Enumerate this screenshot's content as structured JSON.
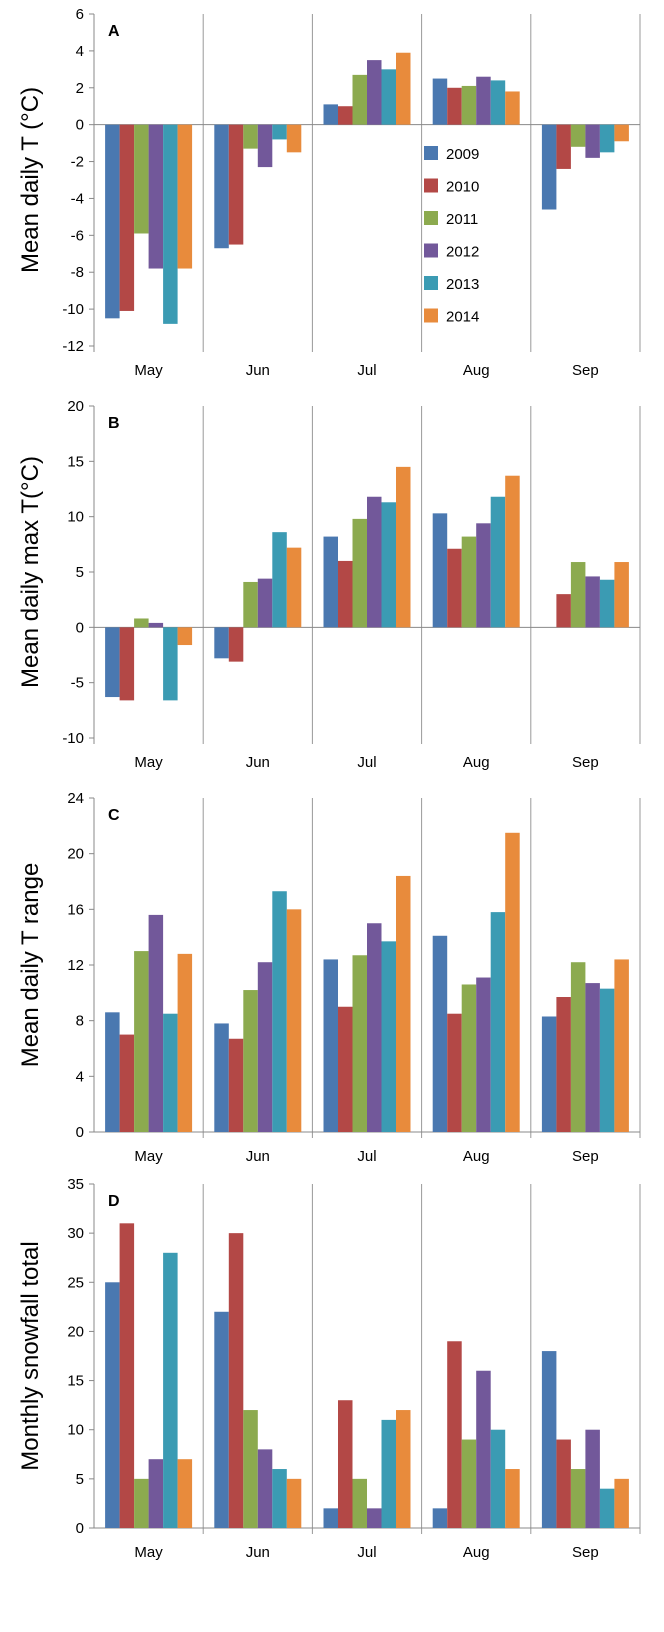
{
  "colors": {
    "2009": "#4a78b0",
    "2010": "#b34846",
    "2011": "#8caa4f",
    "2012": "#72589a",
    "2013": "#3b9bb3",
    "2014": "#e88b3c"
  },
  "legend": [
    "2009",
    "2010",
    "2011",
    "2012",
    "2013",
    "2014"
  ],
  "chart_data": [
    {
      "type": "bar",
      "panel": "A",
      "ylabel": "Mean daily T (°C)",
      "categories": [
        "May",
        "Jun",
        "Jul",
        "Aug",
        "Sep"
      ],
      "ylim": [
        -12,
        6
      ],
      "yticks": [
        -12,
        -10,
        -8,
        -6,
        -4,
        -2,
        0,
        2,
        4,
        6
      ],
      "series": [
        {
          "name": "2009",
          "values": [
            -10.5,
            -6.7,
            1.1,
            2.5,
            -4.6
          ]
        },
        {
          "name": "2010",
          "values": [
            -10.1,
            -6.5,
            1.0,
            2.0,
            -2.4
          ]
        },
        {
          "name": "2011",
          "values": [
            -5.9,
            -1.3,
            2.7,
            2.1,
            -1.2
          ]
        },
        {
          "name": "2012",
          "values": [
            -7.8,
            -2.3,
            3.5,
            2.6,
            -1.8
          ]
        },
        {
          "name": "2013",
          "values": [
            -10.8,
            -0.8,
            3.0,
            2.4,
            -1.5
          ]
        },
        {
          "name": "2014",
          "values": [
            -7.8,
            -1.5,
            3.9,
            1.8,
            -0.9
          ]
        }
      ],
      "legend_position": "inside-center"
    },
    {
      "type": "bar",
      "panel": "B",
      "ylabel": "Mean daily max T(°C)",
      "categories": [
        "May",
        "Jun",
        "Jul",
        "Aug",
        "Sep"
      ],
      "ylim": [
        -10,
        20
      ],
      "yticks": [
        -10,
        -5,
        0,
        5,
        10,
        15,
        20
      ],
      "series": [
        {
          "name": "2009",
          "values": [
            -6.3,
            -2.8,
            8.2,
            10.3,
            0
          ]
        },
        {
          "name": "2010",
          "values": [
            -6.6,
            -3.1,
            6.0,
            7.1,
            3.0
          ]
        },
        {
          "name": "2011",
          "values": [
            0.8,
            4.1,
            9.8,
            8.2,
            5.9
          ]
        },
        {
          "name": "2012",
          "values": [
            0.4,
            4.4,
            11.8,
            9.4,
            4.6
          ]
        },
        {
          "name": "2013",
          "values": [
            -6.6,
            8.6,
            11.3,
            11.8,
            4.3
          ]
        },
        {
          "name": "2014",
          "values": [
            -1.6,
            7.2,
            14.5,
            13.7,
            5.9
          ]
        }
      ]
    },
    {
      "type": "bar",
      "panel": "C",
      "ylabel": "Mean daily T range",
      "categories": [
        "May",
        "Jun",
        "Jul",
        "Aug",
        "Sep"
      ],
      "ylim": [
        0,
        24
      ],
      "yticks": [
        0,
        4,
        8,
        12,
        16,
        20,
        24
      ],
      "series": [
        {
          "name": "2009",
          "values": [
            8.6,
            7.8,
            12.4,
            14.1,
            8.3
          ]
        },
        {
          "name": "2010",
          "values": [
            7.0,
            6.7,
            9.0,
            8.5,
            9.7
          ]
        },
        {
          "name": "2011",
          "values": [
            13.0,
            10.2,
            12.7,
            10.6,
            12.2
          ]
        },
        {
          "name": "2012",
          "values": [
            15.6,
            12.2,
            15.0,
            11.1,
            10.7
          ]
        },
        {
          "name": "2013",
          "values": [
            8.5,
            17.3,
            13.7,
            15.8,
            10.3
          ]
        },
        {
          "name": "2014",
          "values": [
            12.8,
            16.0,
            18.4,
            21.5,
            12.4
          ]
        }
      ]
    },
    {
      "type": "bar",
      "panel": "D",
      "ylabel": "Monthly snowfall total",
      "categories": [
        "May",
        "Jun",
        "Jul",
        "Aug",
        "Sep"
      ],
      "ylim": [
        0,
        35
      ],
      "yticks": [
        0,
        5,
        10,
        15,
        20,
        25,
        30,
        35
      ],
      "series": [
        {
          "name": "2009",
          "values": [
            25,
            22,
            2,
            2,
            18
          ]
        },
        {
          "name": "2010",
          "values": [
            31,
            30,
            13,
            19,
            9
          ]
        },
        {
          "name": "2011",
          "values": [
            5,
            12,
            5,
            9,
            6
          ]
        },
        {
          "name": "2012",
          "values": [
            7,
            8,
            2,
            16,
            10
          ]
        },
        {
          "name": "2013",
          "values": [
            28,
            6,
            11,
            10,
            4
          ]
        },
        {
          "name": "2014",
          "values": [
            7,
            5,
            12,
            6,
            5
          ]
        }
      ]
    }
  ]
}
